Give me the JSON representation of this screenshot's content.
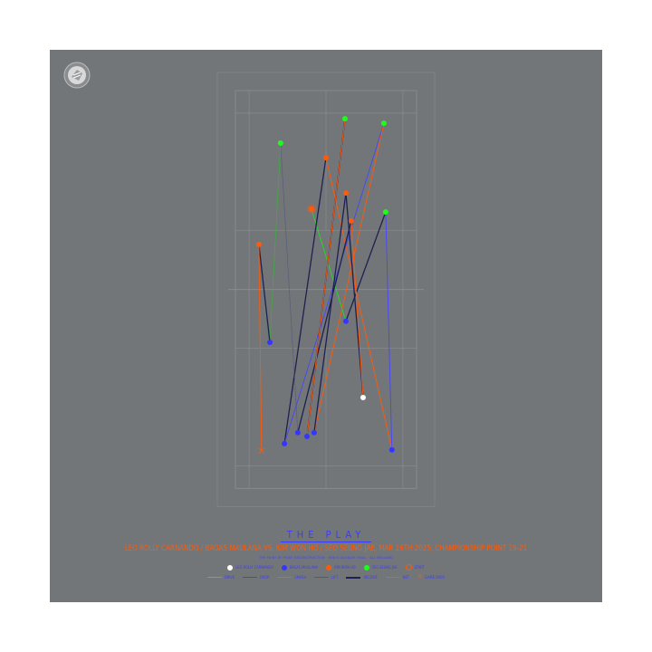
{
  "logo": {
    "name": "logo-badge"
  },
  "title": "THE PLAY",
  "headline": "LEO ROLLY CARNANDO / BAGAS MAULANA VS. KIM WON HO / SEO SEUNG JAE, MAR 16TH 2025, CHAMPIONSHIP POINT 19-21",
  "subtitle": "THE POINT BY POINT RECONSTRUCTION · MEN'S DOUBLES FINAL · ALL ENGLAND",
  "colors": {
    "leo": "#ffffff",
    "bagas": "#3535ff",
    "kim": "#ff5a0a",
    "seo": "#19ff19",
    "drive": "#19e619",
    "drop": "#4f5377",
    "smash": "#ff5a0a",
    "lift": "#4646ff",
    "receive": "#1e2150",
    "net": "#3fae3f",
    "game_over": "#ff5a0a"
  },
  "players_legend": [
    {
      "key": "leo",
      "label": "LEO ROLLY CARNANDO"
    },
    {
      "key": "bagas",
      "label": "BAGAS MAULANA"
    },
    {
      "key": "kim",
      "label": "KIM WON HO"
    },
    {
      "key": "seo",
      "label": "SEO SEUNG JAE"
    },
    {
      "key": "start",
      "label": "START"
    }
  ],
  "shots_legend": [
    {
      "key": "drive",
      "label": "DRIVE"
    },
    {
      "key": "drop",
      "label": "DROP"
    },
    {
      "key": "smash",
      "label": "SMASH"
    },
    {
      "key": "lift",
      "label": "LIFT"
    },
    {
      "key": "receive",
      "label": "RECEIVE"
    },
    {
      "key": "net",
      "label": "NET"
    },
    {
      "key": "game_over",
      "label": "GAME OVER"
    }
  ],
  "chart_data": {
    "type": "scatter",
    "court_units": "m",
    "court": {
      "width": 6.1,
      "length": 13.4
    },
    "positions": [
      {
        "player": "kim",
        "x": 2.56,
        "y": 3.99,
        "start": true
      },
      {
        "player": "bagas",
        "x": 3.72,
        "y": 7.77
      },
      {
        "player": "seo",
        "x": 5.06,
        "y": 4.09
      },
      {
        "player": "bagas",
        "x": 5.27,
        "y": 12.1
      },
      {
        "player": "kim",
        "x": 3.05,
        "y": 2.26
      },
      {
        "player": "bagas",
        "x": 1.65,
        "y": 11.89
      },
      {
        "player": "seo",
        "x": 5.0,
        "y": 1.1
      },
      {
        "player": "bagas",
        "x": 2.65,
        "y": 11.52
      },
      {
        "player": "kim",
        "x": 3.72,
        "y": 3.45
      },
      {
        "player": "leo",
        "x": 4.3,
        "y": 10.34
      },
      {
        "player": "bagas",
        "x": 2.41,
        "y": 11.65
      },
      {
        "player": "seo",
        "x": 3.69,
        "y": 0.95
      },
      {
        "player": "bagas",
        "x": 2.1,
        "y": 11.52
      },
      {
        "player": "seo",
        "x": 1.52,
        "y": 1.77
      },
      {
        "player": "bagas",
        "x": 1.16,
        "y": 8.48
      },
      {
        "player": "kim",
        "x": 0.79,
        "y": 5.18
      },
      {
        "player": "kim",
        "x": 3.9,
        "y": 4.39
      }
    ],
    "game_over": {
      "x": 0.88,
      "y": 12.13
    },
    "shots": [
      {
        "from": 0,
        "to": 1,
        "type": "drive"
      },
      {
        "from": 1,
        "to": 2,
        "type": "receive"
      },
      {
        "from": 2,
        "to": 3,
        "type": "lift"
      },
      {
        "from": 3,
        "to": 4,
        "type": "smash"
      },
      {
        "from": 4,
        "to": 5,
        "type": "receive"
      },
      {
        "from": 5,
        "to": 6,
        "type": "lift"
      },
      {
        "from": 6,
        "to": 7,
        "type": "smash"
      },
      {
        "from": 7,
        "to": 8,
        "type": "receive"
      },
      {
        "from": 8,
        "to": 9,
        "type": "receive"
      },
      {
        "from": 9,
        "to": 16,
        "type": "smash"
      },
      {
        "from": 16,
        "to": 12,
        "type": "receive"
      },
      {
        "from": 10,
        "to": 11,
        "type": "receive"
      },
      {
        "from": 11,
        "to": 10,
        "type": "smash"
      },
      {
        "from": 12,
        "to": 13,
        "type": "drop"
      },
      {
        "from": 13,
        "to": 14,
        "type": "net"
      },
      {
        "from": 14,
        "to": 15,
        "type": "receive"
      },
      {
        "from": 15,
        "to": "game_over",
        "type": "smash"
      }
    ]
  }
}
